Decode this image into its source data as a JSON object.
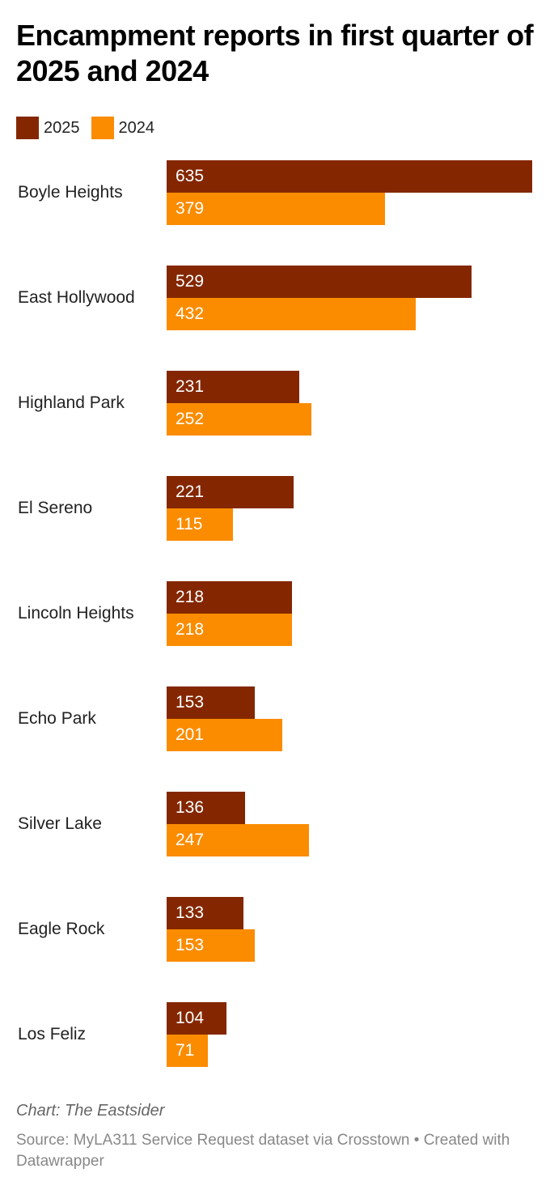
{
  "title": "Encampment reports in first quarter of 2025 and 2024",
  "legend": [
    {
      "label": "2025",
      "color": "#842700"
    },
    {
      "label": "2024",
      "color": "#fb8c00"
    }
  ],
  "footer": {
    "credit": "Chart: The Eastsider",
    "source": "Source: MyLA311 Service Request dataset via Crosstown • Created with Datawrapper"
  },
  "chart_data": {
    "type": "bar",
    "orientation": "horizontal",
    "title": "Encampment reports in first quarter of 2025 and 2024",
    "xlabel": "",
    "ylabel": "",
    "categories": [
      "Boyle Heights",
      "East Hollywood",
      "Highland Park",
      "El Sereno",
      "Lincoln Heights",
      "Echo Park",
      "Silver Lake",
      "Eagle Rock",
      "Los Feliz"
    ],
    "series": [
      {
        "name": "2025",
        "color": "#842700",
        "values": [
          635,
          529,
          231,
          221,
          218,
          153,
          136,
          133,
          104
        ]
      },
      {
        "name": "2024",
        "color": "#fb8c00",
        "values": [
          379,
          432,
          252,
          115,
          218,
          201,
          247,
          153,
          71
        ]
      }
    ],
    "legend_position": "top-left",
    "grid": false,
    "data_labels": true,
    "xlim": [
      0,
      635
    ]
  }
}
